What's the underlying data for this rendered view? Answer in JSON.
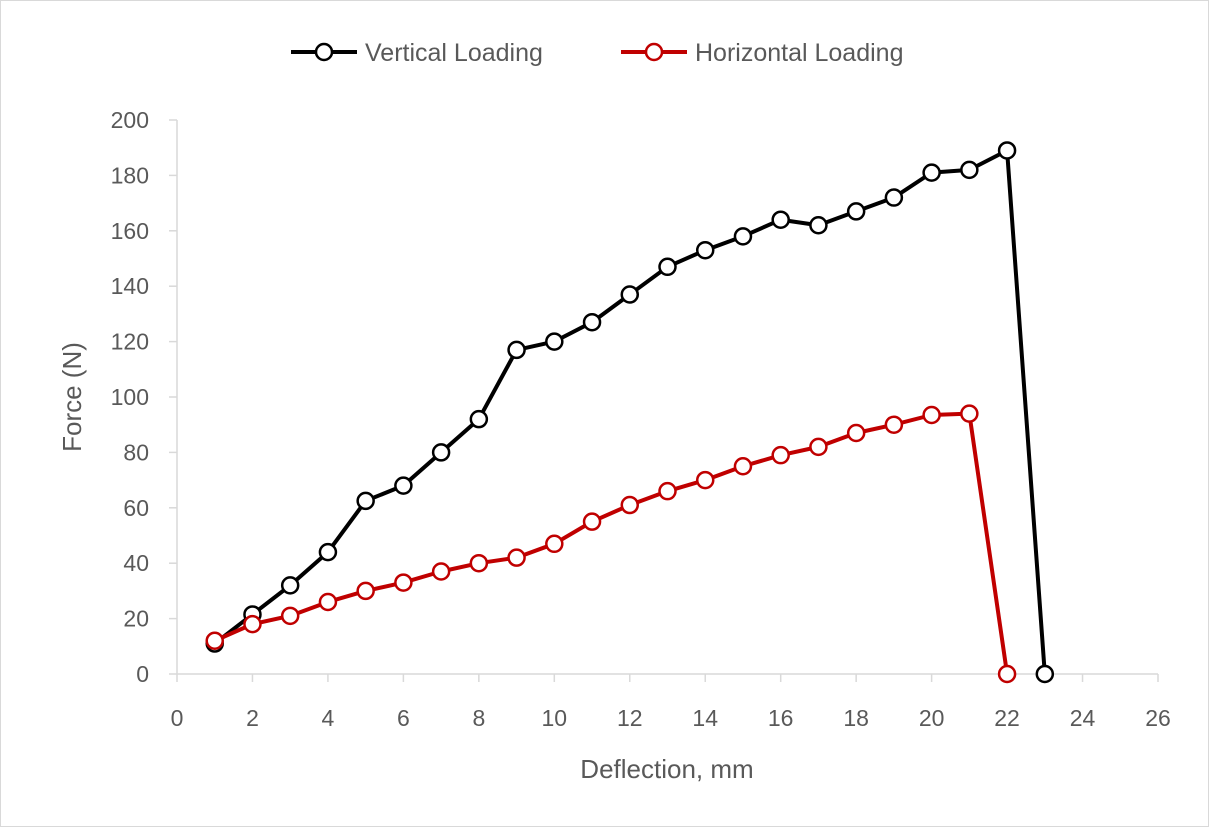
{
  "chart_data": {
    "type": "line",
    "title": "",
    "xlabel": "Deflection, mm",
    "ylabel": "Force (N)",
    "xlim": [
      0,
      26
    ],
    "ylim": [
      0,
      200
    ],
    "x_ticks": [
      0,
      2,
      4,
      6,
      8,
      10,
      12,
      14,
      16,
      18,
      20,
      22,
      24,
      26
    ],
    "y_ticks": [
      0,
      20,
      40,
      60,
      80,
      100,
      120,
      140,
      160,
      180,
      200
    ],
    "grid": false,
    "legend_position": "top-center",
    "marker": "open-circle",
    "series": [
      {
        "name": "Vertical Loading",
        "color": "#000000",
        "x": [
          1,
          2,
          3,
          4,
          5,
          6,
          7,
          8,
          9,
          10,
          11,
          12,
          13,
          14,
          15,
          16,
          17,
          18,
          19,
          20,
          21,
          22,
          23
        ],
        "y": [
          11,
          21.5,
          32,
          44,
          62.5,
          68,
          80,
          92,
          117,
          120,
          127,
          137,
          147,
          153,
          158,
          164,
          162,
          167,
          172,
          181,
          182,
          189,
          0
        ]
      },
      {
        "name": "Horizontal Loading",
        "color": "#c00000",
        "x": [
          1,
          2,
          3,
          4,
          5,
          6,
          7,
          8,
          9,
          10,
          11,
          12,
          13,
          14,
          15,
          16,
          17,
          18,
          19,
          20,
          21,
          22
        ],
        "y": [
          12,
          18,
          21,
          26,
          30,
          33,
          37,
          40,
          42,
          47,
          55,
          61,
          66,
          70,
          75,
          79,
          82,
          87,
          90,
          93.5,
          94,
          0
        ]
      }
    ]
  }
}
